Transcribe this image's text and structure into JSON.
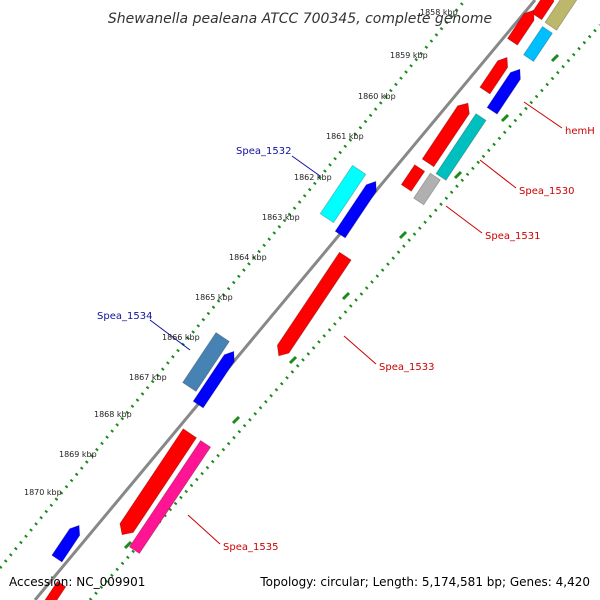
{
  "title": "Shewanella pealeana ATCC 700345, complete genome",
  "accession_text": "Accession: NC_009901",
  "topology_text": "Topology: circular; Length: 5,174,581 bp; Genes: 4,420",
  "colors": {
    "backbone": "#888888",
    "tick_dotted": "#1a8c1a",
    "tick_dashed": "#1a8c1a",
    "label_blue": "#1010a0",
    "label_red": "#cc0000"
  },
  "ticks": [
    {
      "label": "1858 kbp"
    },
    {
      "label": "1859 kbp"
    },
    {
      "label": "1860 kbp"
    },
    {
      "label": "1861 kbp"
    },
    {
      "label": "1862 kbp"
    },
    {
      "label": "1863 kbp"
    },
    {
      "label": "1864 kbp"
    },
    {
      "label": "1865 kbp"
    },
    {
      "label": "1866 kbp"
    },
    {
      "label": "1867 kbp"
    },
    {
      "label": "1868 kbp"
    },
    {
      "label": "1869 kbp"
    },
    {
      "label": "1870 kbp"
    }
  ],
  "gene_labels": [
    {
      "name": "hemH",
      "color": "#cc0000"
    },
    {
      "name": "Spea_1530",
      "color": "#cc0000"
    },
    {
      "name": "Spea_1531",
      "color": "#cc0000"
    },
    {
      "name": "Spea_1532",
      "color": "#1010a0"
    },
    {
      "name": "Spea_1533",
      "color": "#cc0000"
    },
    {
      "name": "Spea_1534",
      "color": "#1010a0"
    },
    {
      "name": "Spea_1535",
      "color": "#cc0000"
    }
  ],
  "features": [
    {
      "color": "#bdb76b"
    },
    {
      "color": "#ff0000"
    },
    {
      "color": "#00bfff"
    },
    {
      "color": "#ff0000"
    },
    {
      "color": "#ff0000"
    },
    {
      "color": "#0000ff"
    },
    {
      "color": "#ff0000"
    },
    {
      "color": "#00bfbf"
    },
    {
      "color": "#ff0000"
    },
    {
      "color": "#b0b0b0"
    },
    {
      "color": "#00ffff"
    },
    {
      "color": "#0000ff"
    },
    {
      "color": "#ff0000"
    },
    {
      "color": "#4682b4"
    },
    {
      "color": "#0000ff"
    },
    {
      "color": "#ff0000"
    },
    {
      "color": "#ff1493"
    },
    {
      "color": "#0000ff"
    },
    {
      "color": "#ff0000"
    }
  ]
}
